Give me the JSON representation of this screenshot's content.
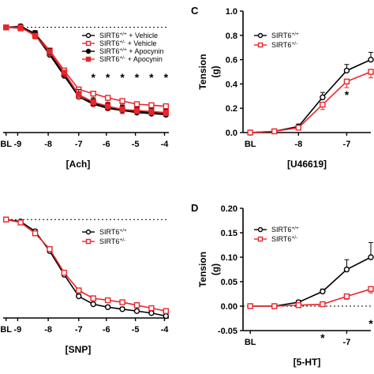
{
  "chart_data": [
    {
      "panel": "",
      "type": "line",
      "xlabel": "[Ach]",
      "ylabel": "",
      "x_ticks": [
        "BL",
        "-9",
        "-8",
        "-7",
        "-6",
        "-5",
        "-4"
      ],
      "x": [
        -9.5,
        -9,
        -8.5,
        -8,
        -7.5,
        -7,
        -6.5,
        -6,
        -5.5,
        -5,
        -4.5,
        -4
      ],
      "ylim": [
        0,
        1.05
      ],
      "reference_line": 1.0,
      "series": [
        {
          "name": "SIRT6+/+ + Vehicle",
          "color": "#000000",
          "marker": "open-circle",
          "values": [
            1.0,
            1.0,
            0.93,
            0.74,
            0.54,
            0.34,
            0.27,
            0.23,
            0.21,
            0.19,
            0.18,
            0.17
          ],
          "errors": [
            0,
            0.02,
            0.03,
            0.04,
            0.04,
            0.05,
            0.05,
            0.05,
            0.04,
            0.04,
            0.04,
            0.04
          ]
        },
        {
          "name": "SIRT6+/- + Vehicle",
          "color": "#e8262b",
          "marker": "open-square",
          "values": [
            1.0,
            0.99,
            0.94,
            0.78,
            0.59,
            0.41,
            0.37,
            0.33,
            0.3,
            0.27,
            0.26,
            0.25
          ],
          "errors": [
            0,
            0.02,
            0.03,
            0.04,
            0.04,
            0.04,
            0.04,
            0.04,
            0.03,
            0.03,
            0.03,
            0.03
          ]
        },
        {
          "name": "SIRT6+/+ + Apocynin",
          "color": "#000000",
          "marker": "filled-circle",
          "values": [
            1.0,
            1.01,
            0.94,
            0.76,
            0.55,
            0.36,
            0.28,
            0.24,
            0.22,
            0.2,
            0.19,
            0.18
          ],
          "errors": [
            0,
            0.02,
            0.03,
            0.04,
            0.04,
            0.05,
            0.05,
            0.04,
            0.04,
            0.04,
            0.04,
            0.04
          ]
        },
        {
          "name": "SIRT6+/- + Apocynin",
          "color": "#e8262b",
          "marker": "filled-square",
          "values": [
            1.0,
            1.0,
            0.92,
            0.77,
            0.57,
            0.36,
            0.29,
            0.25,
            0.22,
            0.21,
            0.2,
            0.19
          ],
          "errors": [
            0,
            0.02,
            0.03,
            0.04,
            0.04,
            0.04,
            0.04,
            0.04,
            0.04,
            0.03,
            0.03,
            0.03
          ]
        }
      ],
      "annotations": [
        {
          "text": "*",
          "x": -6.5
        },
        {
          "text": "*",
          "x": -6
        },
        {
          "text": "*",
          "x": -5.5
        },
        {
          "text": "*",
          "x": -5
        },
        {
          "text": "*",
          "x": -4.5
        },
        {
          "text": "*",
          "x": -4
        }
      ]
    },
    {
      "panel": "C",
      "type": "line",
      "xlabel": "[U46619]",
      "ylabel": "Tension\n(g)",
      "x_ticks": [
        "BL",
        "-8",
        "-7"
      ],
      "x": [
        -9,
        -8.5,
        -8,
        -7.5,
        -7,
        -6.5
      ],
      "ylim": [
        0,
        1.0
      ],
      "y_ticks": [
        "0.0",
        "0.2",
        "0.4",
        "0.6",
        "0.8",
        "1.0"
      ],
      "series": [
        {
          "name": "SIRT6+/+",
          "color": "#000000",
          "marker": "open-circle",
          "values": [
            0.0,
            0.01,
            0.05,
            0.29,
            0.51,
            0.6
          ],
          "errors": [
            0,
            0.01,
            0.02,
            0.04,
            0.05,
            0.06
          ]
        },
        {
          "name": "SIRT6+/-",
          "color": "#e8262b",
          "marker": "open-square",
          "values": [
            0.0,
            0.01,
            0.04,
            0.23,
            0.42,
            0.5
          ],
          "errors": [
            0,
            0.01,
            0.02,
            0.04,
            0.05,
            0.05
          ]
        }
      ],
      "annotations": [
        {
          "text": "*",
          "x": -7
        }
      ]
    },
    {
      "panel": "",
      "type": "line",
      "xlabel": "[SNP]",
      "ylabel": "",
      "x_ticks": [
        "BL",
        "-9",
        "-8",
        "-7",
        "-6",
        "-5",
        "-4"
      ],
      "x": [
        -9.5,
        -9,
        -8.5,
        -8,
        -7.5,
        -7,
        -6.5,
        -6,
        -5.5,
        -5,
        -4.5,
        -4
      ],
      "ylim": [
        0,
        1.05
      ],
      "reference_line": 1.0,
      "series": [
        {
          "name": "SIRT6+/+",
          "color": "#000000",
          "marker": "open-circle",
          "values": [
            1.0,
            0.98,
            0.88,
            0.68,
            0.44,
            0.22,
            0.14,
            0.11,
            0.09,
            0.07,
            0.05,
            0.02
          ],
          "errors": [
            0,
            0.01,
            0.02,
            0.02,
            0.02,
            0.02,
            0.02,
            0.02,
            0.02,
            0.02,
            0.02,
            0.02
          ]
        },
        {
          "name": "SIRT6+/-",
          "color": "#e8262b",
          "marker": "open-square",
          "values": [
            1.0,
            0.97,
            0.86,
            0.7,
            0.46,
            0.28,
            0.2,
            0.18,
            0.16,
            0.13,
            0.1,
            0.07
          ],
          "errors": [
            0,
            0.01,
            0.02,
            0.02,
            0.02,
            0.02,
            0.02,
            0.02,
            0.02,
            0.02,
            0.02,
            0.02
          ]
        }
      ]
    },
    {
      "panel": "D",
      "type": "line",
      "xlabel": "[5-HT]",
      "ylabel": "Tension\n(g)",
      "x_ticks": [
        "BL",
        "-7"
      ],
      "x": [
        -9,
        -8.5,
        -8,
        -7.5,
        -7,
        -6.5
      ],
      "ylim": [
        -0.05,
        0.2
      ],
      "y_ticks": [
        "-0.05",
        "0.00",
        "0.05",
        "0.10",
        "0.15",
        "0.20"
      ],
      "reference_line": 0.0,
      "series": [
        {
          "name": "SIRT6+/+",
          "color": "#000000",
          "marker": "open-circle",
          "values": [
            0.0,
            0.0,
            0.008,
            0.03,
            0.075,
            0.1
          ],
          "errors": [
            0,
            0.002,
            0.004,
            0.005,
            0.02,
            0.03
          ]
        },
        {
          "name": "SIRT6+/-",
          "color": "#e8262b",
          "marker": "open-square",
          "values": [
            0.0,
            0.0,
            0.002,
            0.004,
            0.02,
            0.035
          ],
          "errors": [
            0,
            0.002,
            0.002,
            0.003,
            0.006,
            0.008
          ]
        }
      ],
      "annotations": [
        {
          "text": "*",
          "x": -7.5
        },
        {
          "text": "*",
          "x": -6.5
        }
      ]
    }
  ]
}
